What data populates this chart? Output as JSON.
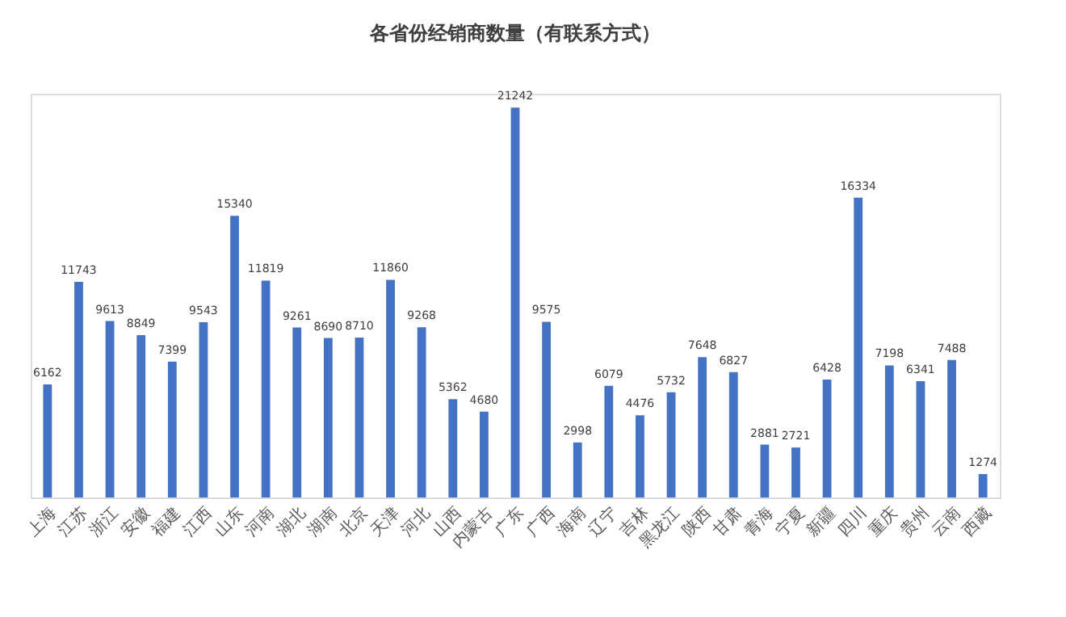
{
  "chart_data": {
    "type": "bar",
    "title": "各省份经销商数量（有联系方式）",
    "categories": [
      "上海",
      "江苏",
      "浙江",
      "安徽",
      "福建",
      "江西",
      "山东",
      "河南",
      "湖北",
      "湖南",
      "北京",
      "天津",
      "河北",
      "山西",
      "内蒙古",
      "广东",
      "广西",
      "海南",
      "辽宁",
      "吉林",
      "黑龙江",
      "陕西",
      "甘肃",
      "青海",
      "宁夏",
      "新疆",
      "四川",
      "重庆",
      "贵州",
      "云南",
      "西藏"
    ],
    "values": [
      6162,
      11743,
      9613,
      8849,
      7399,
      9543,
      15340,
      11819,
      9261,
      8690,
      8710,
      11860,
      9268,
      5362,
      4680,
      21242,
      9575,
      2998,
      6079,
      4476,
      5732,
      7648,
      6827,
      2881,
      2721,
      6428,
      16334,
      7198,
      6341,
      7488,
      1274
    ],
    "color": "#4472c4",
    "data_labels": true,
    "tick_labels": "x",
    "grid": false
  }
}
